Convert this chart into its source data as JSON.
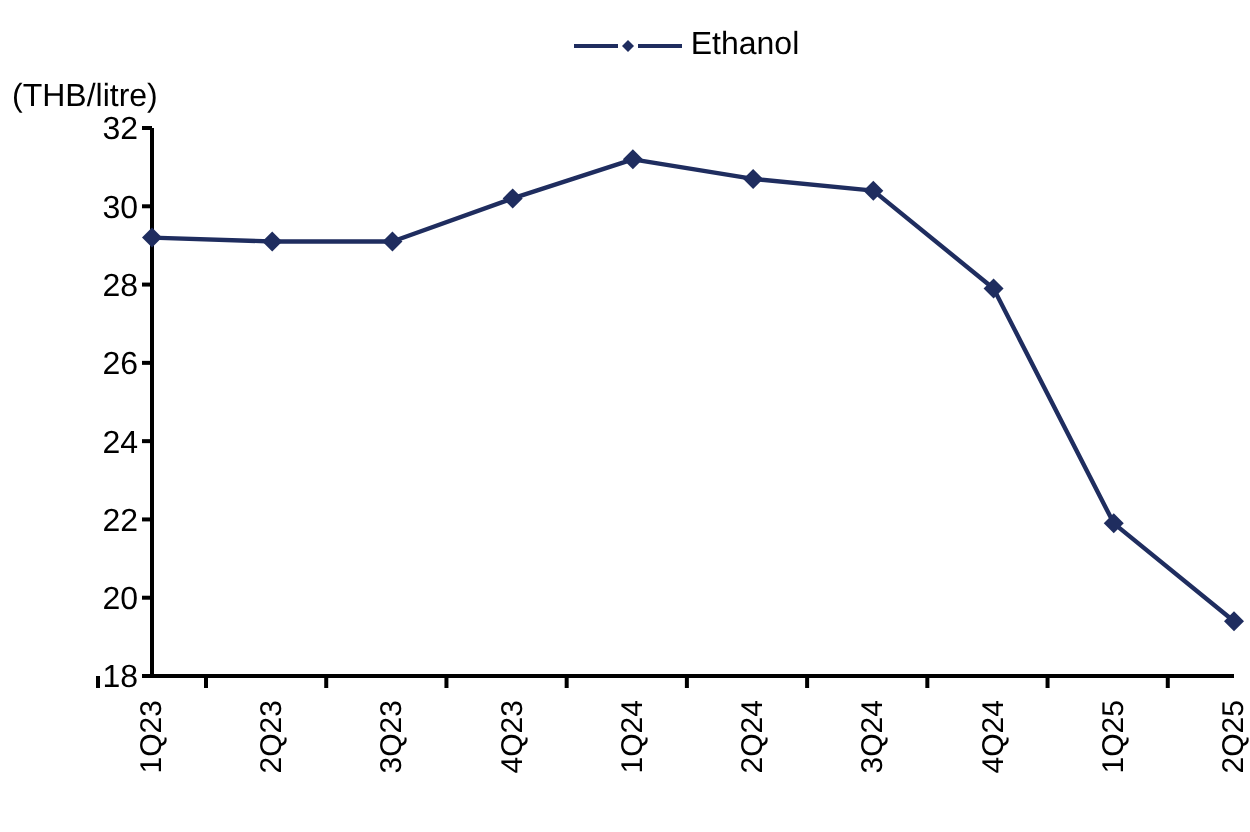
{
  "chart_data": {
    "type": "line",
    "ylabel": "(THB/litre)",
    "categories": [
      "1Q23",
      "2Q23",
      "3Q23",
      "4Q23",
      "1Q24",
      "2Q24",
      "3Q24",
      "4Q24",
      "1Q25",
      "2Q25"
    ],
    "series": [
      {
        "name": "Ethanol",
        "color": "#1f2d5f",
        "values": [
          29.2,
          29.1,
          29.1,
          30.2,
          31.2,
          30.7,
          30.4,
          27.9,
          21.9,
          19.4
        ]
      }
    ],
    "ylim": [
      18,
      32
    ],
    "yticks": [
      18,
      20,
      22,
      24,
      26,
      28,
      30,
      32
    ],
    "grid": false,
    "legend": "top",
    "marker": "diamond",
    "line_style": "solid"
  }
}
